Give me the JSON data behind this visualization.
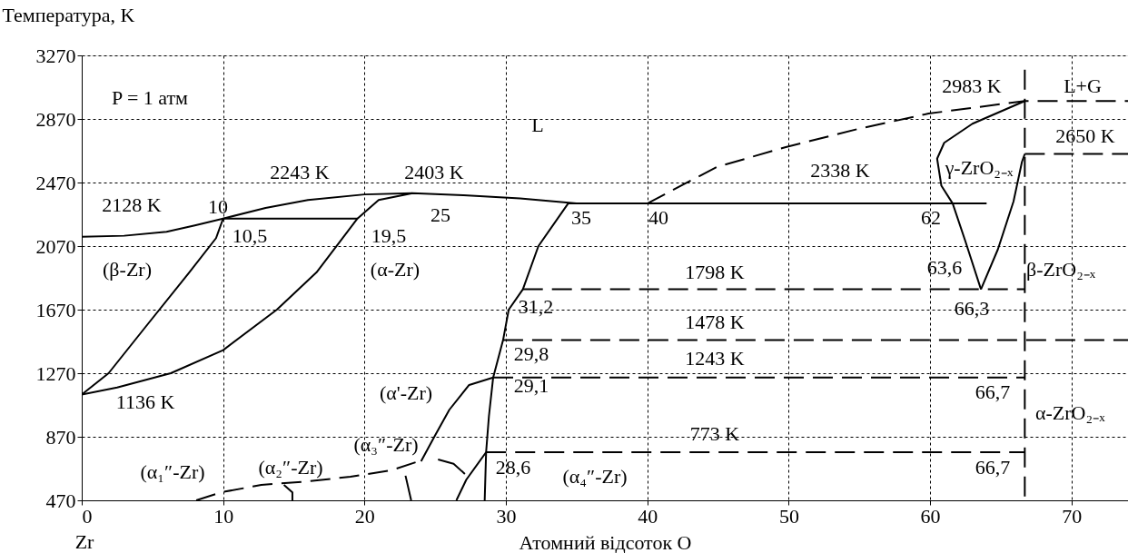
{
  "chart_data": {
    "type": "line",
    "xlabel": "Атомний відсоток O",
    "ylabel": "Температура, K",
    "xlim": [
      0,
      74
    ],
    "xticks": [
      0,
      10,
      20,
      30,
      40,
      50,
      60,
      70
    ],
    "ylim": [
      470,
      3270
    ],
    "yticks": [
      470,
      870,
      1270,
      1670,
      2070,
      2470,
      2870,
      3270
    ],
    "grid": true,
    "marker": "none",
    "series": [
      {
        "color": "#000000",
        "line_style": "solid",
        "x": [
          0,
          3,
          6,
          8,
          10,
          13,
          16,
          20,
          23.4,
          27,
          31,
          35,
          64
        ],
        "values": [
          2128,
          2135,
          2160,
          2200,
          2243,
          2310,
          2360,
          2395,
          2403,
          2390,
          2370,
          2338,
          2338
        ]
      },
      {
        "color": "#000000",
        "line_style": "solid",
        "x": [
          10,
          19.5
        ],
        "values": [
          2243,
          2243
        ]
      },
      {
        "color": "#000000",
        "line_style": "solid",
        "x": [
          0,
          1.9,
          4.5,
          7.6,
          9.5,
          10
        ],
        "values": [
          1136,
          1270,
          1560,
          1904,
          2120,
          2243
        ]
      },
      {
        "color": "#000000",
        "line_style": "solid",
        "x": [
          0,
          2.5,
          6.3,
          10,
          13.8,
          16.6,
          19.5,
          21,
          23.4
        ],
        "values": [
          1136,
          1180,
          1270,
          1415,
          1670,
          1904,
          2243,
          2360,
          2403
        ]
      },
      {
        "color": "#000000",
        "line_style": "solid",
        "x": [
          35,
          34.4,
          32.3,
          31.2,
          30.2,
          29.8,
          29.1,
          28.8,
          28.6,
          28.5
        ],
        "values": [
          2338,
          2338,
          2070,
          1798,
          1670,
          1478,
          1243,
          1000,
          773,
          470
        ]
      },
      {
        "color": "#000000",
        "line_style": "dashed",
        "x": [
          40,
          44.9,
          49.8,
          54.9,
          59.9,
          66.7,
          74
        ],
        "values": [
          2338,
          2567,
          2693,
          2807,
          2904,
          2983,
          2983
        ]
      },
      {
        "color": "#000000",
        "line_style": "solid",
        "x": [
          66.7,
          63,
          61,
          60.5,
          60.8,
          61.6,
          62.5,
          63.6
        ],
        "values": [
          2983,
          2840,
          2720,
          2620,
          2450,
          2338,
          2100,
          1798
        ]
      },
      {
        "color": "#000000",
        "line_style": "solid",
        "x": [
          63.6,
          64.8,
          65.9,
          66.5,
          66.7
        ],
        "values": [
          1798,
          2050,
          2350,
          2600,
          2650
        ]
      },
      {
        "color": "#000000",
        "line_style": "dashed",
        "x": [
          66.7,
          66.7
        ],
        "values": [
          3180,
          470
        ]
      },
      {
        "color": "#000000",
        "line_style": "dashed",
        "x": [
          66.7,
          74
        ],
        "values": [
          2650,
          2650
        ]
      },
      {
        "color": "#000000",
        "line_style": "dashed",
        "x": [
          31.2,
          66.7
        ],
        "values": [
          1798,
          1798
        ]
      },
      {
        "color": "#000000",
        "line_style": "dashed",
        "x": [
          29.8,
          74
        ],
        "values": [
          1478,
          1478
        ]
      },
      {
        "color": "#000000",
        "line_style": "dashed",
        "x": [
          29.1,
          66.7
        ],
        "values": [
          1243,
          1243
        ]
      },
      {
        "color": "#000000",
        "line_style": "dashed",
        "x": [
          28.6,
          66.7
        ],
        "values": [
          773,
          773
        ]
      },
      {
        "color": "#000000",
        "line_style": "solid",
        "x": [
          29.1,
          27.4,
          26,
          25,
          24
        ],
        "values": [
          1243,
          1196,
          1040,
          880,
          716
        ]
      },
      {
        "color": "#000000",
        "line_style": "dashed",
        "x": [
          8.1,
          9.9,
          12.7,
          16.1,
          19,
          21.9,
          24
        ],
        "values": [
          470,
          521,
          567,
          590,
          619,
          659,
          721
        ]
      },
      {
        "color": "#000000",
        "line_style": "solid",
        "x": [
          14.3,
          14.9,
          14.9
        ],
        "values": [
          567,
          520,
          470
        ]
      },
      {
        "color": "#000000",
        "line_style": "solid",
        "x": [
          22.9,
          23.3
        ],
        "values": [
          625,
          470
        ]
      },
      {
        "color": "#000000",
        "line_style": "solid",
        "x": [
          25.2,
          26.3,
          27.1
        ],
        "values": [
          727,
          700,
          636
        ]
      },
      {
        "color": "#000000",
        "line_style": "solid",
        "x": [
          26.5,
          27.2,
          28.6
        ],
        "values": [
          470,
          600,
          773
        ]
      }
    ],
    "annotations": [
      "Zr",
      "P = 1 атм",
      "L",
      "L+G",
      "2983 K",
      "2650 K",
      "γ-ZrO₂₋ₓ",
      "2338 K",
      "2403 K",
      "2243 K",
      "2128 K",
      "10",
      "10,5",
      "19,5",
      "25",
      "35",
      "40",
      "62",
      "(β-Zr)",
      "(α-Zr)",
      "1798 K",
      "β-ZrO₂₋ₓ",
      "63,6",
      "66,3",
      "31,2",
      "1478 K",
      "29,8",
      "1243 K",
      "29,1",
      "1136 K",
      "(α'-Zr)",
      "66,7",
      "α-ZrO₂₋ₓ",
      "(α₃″-Zr)",
      "(α₂″-Zr)",
      "(α₁″-Zr)",
      "773 K",
      "28,6",
      "66,7",
      "(α₄″-Zr)"
    ]
  }
}
